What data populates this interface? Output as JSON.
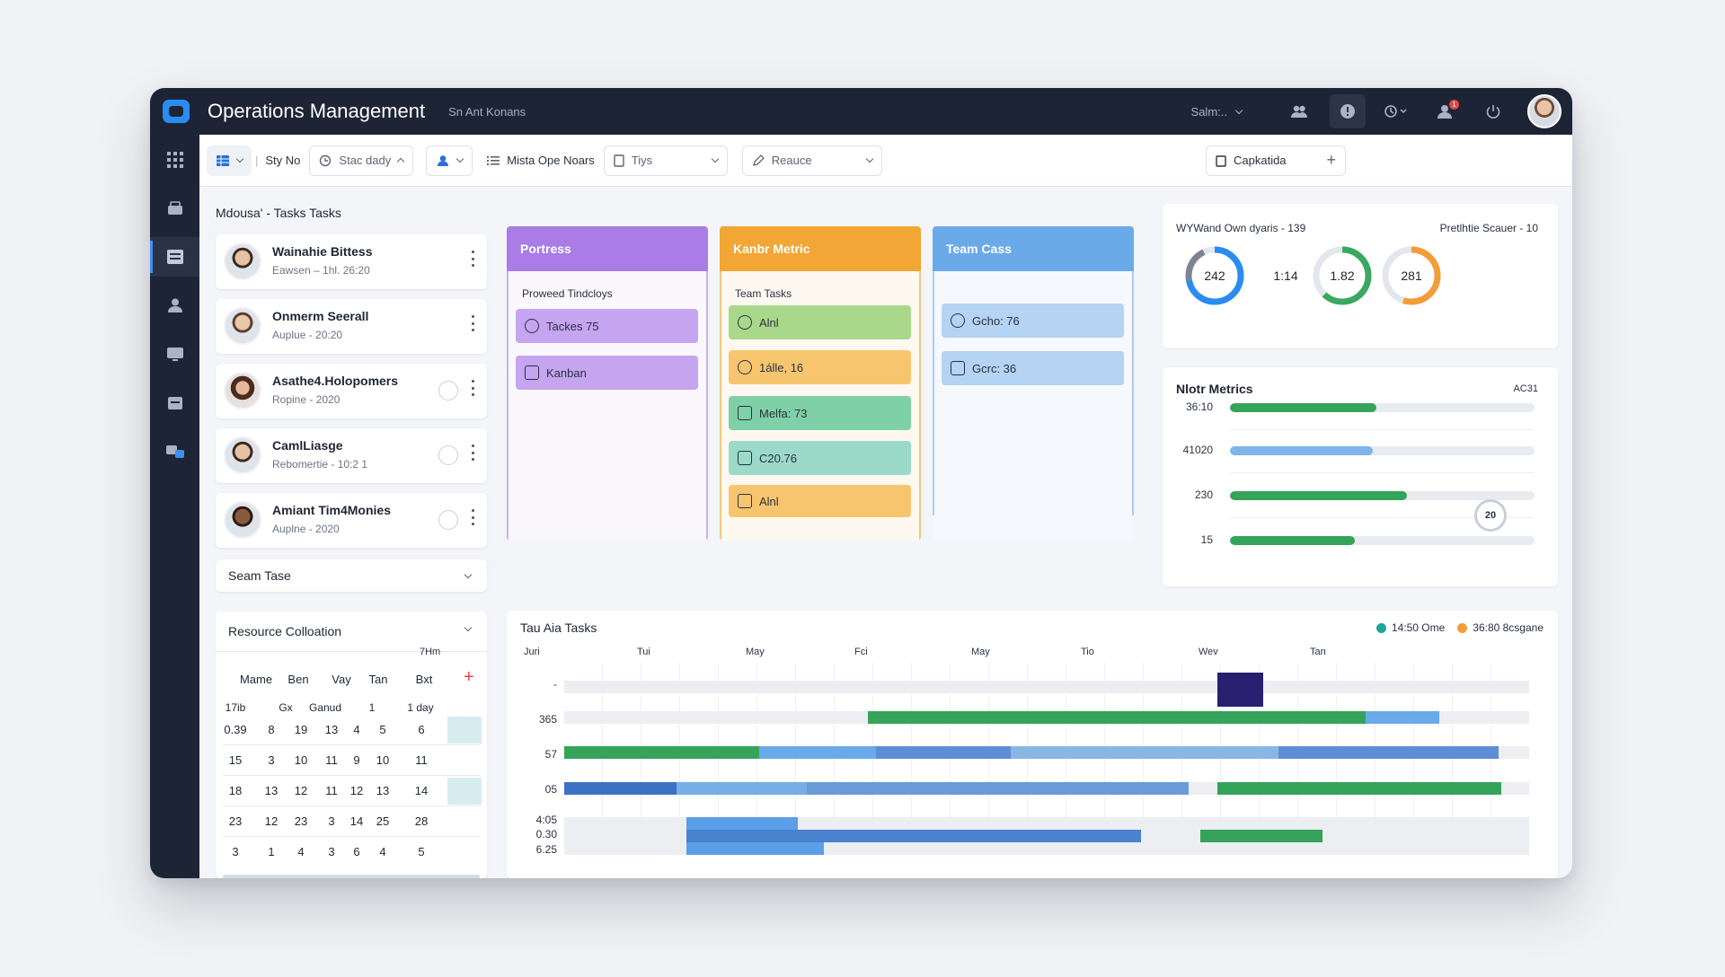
{
  "app": {
    "title": "Operations Management",
    "subtitle": "Sn Ant Konans"
  },
  "topbar": {
    "search_label": "Salm:..",
    "notification_count": "1"
  },
  "toolbar": {
    "view_label": "Sty No",
    "date_filter": "Stac dady",
    "list_label": "Mista Ope Noars",
    "type_select": "Tiys",
    "resource_select": "Reauce",
    "action_label": "Capkatida"
  },
  "tasks_panel": {
    "title": "Mdousa' - Tasks Tasks",
    "people": [
      {
        "name": "Wainahie Bittess",
        "sub": "Eawsen  –  1hl. 26:20"
      },
      {
        "name": "Onmerm Seerall",
        "sub": "Auplue  -  20:20"
      },
      {
        "name": "Asathe4.Holopomers",
        "sub": "Ropine  -  2020"
      },
      {
        "name": "CamlLiasge",
        "sub": "Rebomertie  -  10:2 1"
      },
      {
        "name": "Amiant Tim4Monies",
        "sub": "Auplne  -  2020"
      }
    ],
    "team_dropdown": "Seam Tase"
  },
  "kanban": {
    "columns": [
      {
        "title": "Portress",
        "subtitle": "Proweed Tindcloys",
        "cards": [
          "Tackes 75",
          "Kanban"
        ]
      },
      {
        "title": "Kanbr Metric",
        "subtitle": "Team Tasks",
        "cards": [
          "Alnl",
          "1álle, 16",
          "Melfa: 73",
          "C20.76",
          "Alnl"
        ]
      },
      {
        "title": "Team Cass",
        "subtitle": "",
        "cards": [
          "Gcho: 76",
          "Gcrc: 36"
        ]
      }
    ]
  },
  "gauges": {
    "left_title": "WYWand Own dyaris  -  139",
    "right_title": "Pretlhtie Scauer  -  10",
    "values": [
      "242",
      "1:14",
      "1.82",
      "281"
    ],
    "fractions": [
      0.72,
      0,
      0.62,
      0.55
    ],
    "colors": [
      "#2b8cf0",
      "#1d2436",
      "#3aa860",
      "#f29d38"
    ]
  },
  "metrics": {
    "title": "Nlotr Metrics",
    "code": "AC31",
    "rows": [
      {
        "label": "36:10",
        "fill": 0.48,
        "color": "#36a35a"
      },
      {
        "label": "41020",
        "fill": 0.47,
        "color": "#7fb4ea"
      },
      {
        "label": "230",
        "fill": 0.58,
        "color": "#36a35a"
      },
      {
        "label": "15",
        "fill": 0.41,
        "color": "#36a35a"
      }
    ],
    "badge": "20"
  },
  "resource": {
    "title": "Resource Colloation",
    "headers": [
      "Mame",
      "Ben",
      "Vay",
      "Tan",
      "Bxt"
    ],
    "rows": [
      [
        "17ib",
        "Gx",
        "Ganud",
        "1",
        "1 day"
      ],
      [
        "0.39",
        "8",
        "19",
        "13",
        "4",
        "5",
        "6"
      ],
      [
        "15",
        "3",
        "10",
        "11",
        "9",
        "10",
        "11"
      ],
      [
        "18",
        "13",
        "12",
        "11",
        "12",
        "13",
        "14"
      ],
      [
        "23",
        "12",
        "23",
        "3",
        "14",
        "25",
        "28"
      ],
      [
        "3",
        "1",
        "4",
        "3",
        "6",
        "4",
        "5"
      ]
    ]
  },
  "gantt": {
    "title": "Tau Aia Tasks",
    "legend": [
      {
        "label": "14:50 Ome",
        "color": "#1fa39a"
      },
      {
        "label": "36:80 8csgane",
        "color": "#f29d38"
      }
    ],
    "x_labels": [
      "7Hm",
      "Juri",
      "Tui",
      "May",
      "Fci",
      "May",
      "Tio",
      "Wev",
      "Tan"
    ],
    "y_labels": [
      "-",
      "365",
      "57",
      "05",
      "4:05",
      "0.30",
      "6.25"
    ]
  },
  "colors": {
    "dark": "#1d2436",
    "accent": "#2b8cf0",
    "purple": "#a97ce6",
    "orange": "#f2a635",
    "blue": "#6aaae8"
  }
}
